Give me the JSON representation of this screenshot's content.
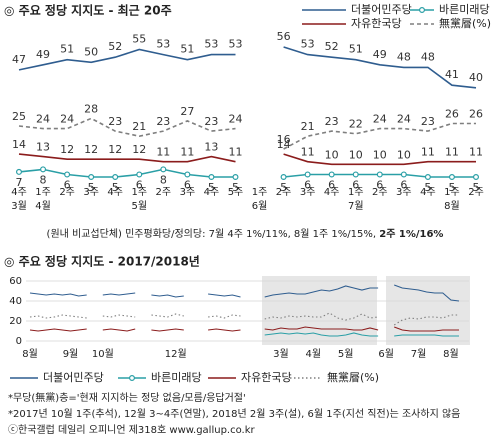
{
  "chart_data": [
    {
      "type": "line",
      "title": "◎ 주요 정당 지지도 - 최근 20주",
      "categories": [
        "4주",
        "1주",
        "2주",
        "3주",
        "4주",
        "1주",
        "2주",
        "3주",
        "4주",
        "5주",
        "1주",
        "2주",
        "3주",
        "4주",
        "1주",
        "2주",
        "3주",
        "4주",
        "1주",
        "2주"
      ],
      "months": [
        "3월",
        "4월",
        null,
        null,
        null,
        "5월",
        null,
        null,
        null,
        null,
        "6월",
        null,
        null,
        null,
        "7월",
        null,
        null,
        null,
        "8월",
        null
      ],
      "series": [
        {
          "name": "더불어민주당",
          "color": "#2f5d8f",
          "style": "solid",
          "values": [
            47,
            49,
            51,
            50,
            52,
            55,
            53,
            51,
            53,
            53,
            null,
            56,
            53,
            52,
            51,
            49,
            48,
            48,
            41,
            40
          ]
        },
        {
          "name": "바른미래당",
          "color": "#2a9fa6",
          "style": "solid",
          "values": [
            7,
            8,
            6,
            5,
            5,
            6,
            8,
            6,
            5,
            5,
            null,
            5,
            6,
            6,
            6,
            6,
            6,
            5,
            5,
            5
          ]
        },
        {
          "name": "자유한국당",
          "color": "#8b1c1c",
          "style": "solid",
          "values": [
            14,
            13,
            12,
            12,
            12,
            12,
            11,
            11,
            13,
            11,
            null,
            14,
            11,
            10,
            10,
            10,
            10,
            11,
            11,
            11
          ]
        },
        {
          "name": "無黨層(%)",
          "color": "#7f7f7f",
          "style": "dashed",
          "values": [
            25,
            24,
            24,
            28,
            23,
            21,
            23,
            27,
            23,
            24,
            null,
            16,
            21,
            23,
            22,
            24,
            24,
            23,
            26,
            26
          ]
        }
      ],
      "note": [
        "(원내 비교섭단체) 민주평화당/정의당: 7월 4주 1%/11%, 8월 1주 1%/15%, ",
        "2주 1%/16%"
      ]
    },
    {
      "type": "line",
      "title": "◎ 주요 정당 지지도 - 2017/2018년",
      "categories": [
        "8월",
        null,
        null,
        null,
        null,
        "9월",
        null,
        null,
        null,
        "10월",
        null,
        null,
        null,
        null,
        null,
        null,
        null,
        null,
        "12월",
        null,
        null,
        null,
        null,
        null,
        null,
        null,
        null,
        null,
        null,
        null,
        null,
        "3월",
        null,
        null,
        null,
        "4월",
        null,
        null,
        null,
        "5월",
        null,
        null,
        null,
        null,
        "6월",
        null,
        null,
        null,
        "7월",
        null,
        null,
        null,
        "8월",
        null
      ],
      "ylim": [
        0,
        60
      ],
      "yticks": [
        0,
        20,
        40,
        60
      ],
      "grid": true,
      "series": [
        {
          "name": "더불어민주당",
          "color": "#2f5d8f",
          "style": "solid",
          "values": [
            48,
            47,
            46,
            47,
            46,
            47,
            45,
            46,
            null,
            46,
            47,
            46,
            47,
            48,
            null,
            46,
            45,
            46,
            44,
            45,
            null,
            null,
            47,
            46,
            45,
            46,
            44,
            null,
            null,
            44,
            46,
            47,
            48,
            47,
            47,
            49,
            51,
            50,
            52,
            55,
            53,
            51,
            53,
            53,
            null,
            56,
            53,
            52,
            51,
            49,
            48,
            48,
            41,
            40
          ]
        },
        {
          "name": "바른미래당",
          "color": "#2a9fa6",
          "style": "solid",
          "values": [
            null,
            null,
            null,
            null,
            null,
            null,
            null,
            null,
            null,
            null,
            null,
            null,
            null,
            null,
            null,
            null,
            null,
            null,
            null,
            null,
            null,
            null,
            null,
            null,
            null,
            null,
            null,
            null,
            null,
            6,
            7,
            8,
            7,
            8,
            7,
            8,
            6,
            5,
            5,
            6,
            8,
            6,
            5,
            5,
            null,
            5,
            6,
            6,
            6,
            6,
            6,
            5,
            5,
            5
          ]
        },
        {
          "name": "자유한국당",
          "color": "#8b1c1c",
          "style": "solid",
          "values": [
            11,
            10,
            11,
            12,
            11,
            10,
            11,
            12,
            null,
            11,
            12,
            11,
            10,
            12,
            null,
            11,
            10,
            11,
            12,
            11,
            null,
            null,
            11,
            12,
            11,
            10,
            11,
            null,
            null,
            12,
            11,
            13,
            12,
            12,
            14,
            13,
            12,
            12,
            12,
            12,
            11,
            11,
            13,
            11,
            null,
            14,
            11,
            10,
            10,
            10,
            10,
            11,
            11,
            11
          ]
        },
        {
          "name": "無黨層(%)",
          "color": "#7f7f7f",
          "style": "dotted",
          "values": [
            24,
            25,
            23,
            24,
            26,
            25,
            24,
            23,
            null,
            25,
            24,
            26,
            25,
            24,
            null,
            26,
            25,
            24,
            27,
            25,
            null,
            null,
            24,
            25,
            23,
            26,
            25,
            null,
            null,
            22,
            24,
            23,
            25,
            24,
            25,
            24,
            24,
            28,
            23,
            21,
            23,
            27,
            23,
            24,
            null,
            16,
            21,
            23,
            22,
            24,
            24,
            23,
            26,
            26
          ]
        }
      ]
    }
  ],
  "footnotes": [
    "*무당(無黨)층='현재 지지하는 정당 없음/모름/응답거절'",
    "*2017년 10월 1주(추석), 12월 3~4주(연말), 2018년 2월 3주(설), 6월 1주(지선 직전)는 조사하지 않음",
    "ⓒ한국갤럽 데일리 오피니언 제318호 www.gallup.co.kr"
  ]
}
